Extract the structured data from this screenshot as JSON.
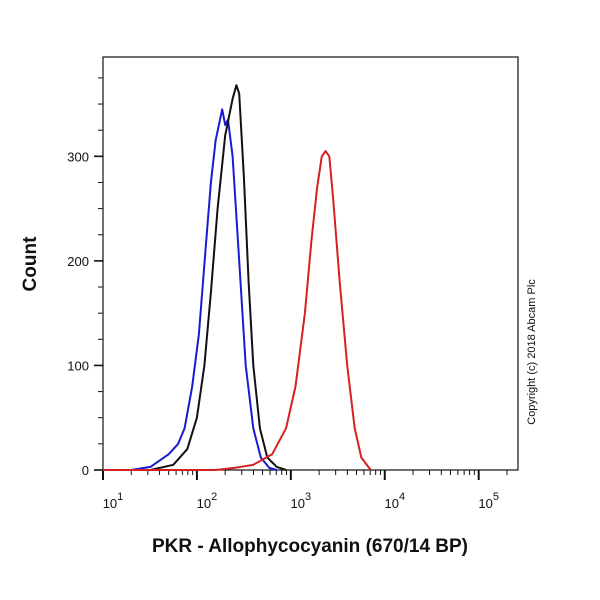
{
  "chart_data": {
    "type": "line",
    "xlabel": "PKR - Allophycocyanin (670/14 BP)",
    "ylabel": "Count",
    "xscale": "log",
    "xlim": [
      10,
      262144
    ],
    "ylim": [
      0,
      395
    ],
    "x_ticks": [
      {
        "base": "10",
        "exp": "1",
        "value": 10
      },
      {
        "base": "10",
        "exp": "2",
        "value": 100
      },
      {
        "base": "10",
        "exp": "3",
        "value": 1000
      },
      {
        "base": "10",
        "exp": "4",
        "value": 10000
      },
      {
        "base": "10",
        "exp": "5",
        "value": 100000
      }
    ],
    "y_ticks": [
      {
        "label": "0",
        "value": 0
      },
      {
        "label": "100",
        "value": 100
      },
      {
        "label": "200",
        "value": 200
      },
      {
        "label": "300",
        "value": 300
      }
    ],
    "grid": false,
    "legend": "none",
    "series": [
      {
        "color": "#1a1ad0",
        "x": [
          20,
          32,
          50,
          63,
          74,
          89,
          105,
          126,
          141,
          158,
          186,
          200,
          214,
          240,
          282,
          331,
          398,
          479,
          589,
          708
        ],
        "y": [
          0,
          3,
          15,
          25,
          40,
          80,
          130,
          220,
          275,
          315,
          345,
          330,
          335,
          300,
          200,
          100,
          40,
          12,
          2,
          0
        ]
      },
      {
        "color": "#111111",
        "x": [
          32,
          56,
          79,
          100,
          120,
          141,
          166,
          200,
          240,
          263,
          282,
          316,
          355,
          398,
          468,
          562,
          708,
          891
        ],
        "y": [
          0,
          5,
          20,
          50,
          100,
          170,
          250,
          320,
          355,
          368,
          360,
          280,
          180,
          100,
          40,
          12,
          3,
          0
        ]
      },
      {
        "color": "#d42020",
        "x": [
          158,
          251,
          398,
          631,
          891,
          1122,
          1413,
          1660,
          1905,
          2138,
          2344,
          2570,
          2818,
          3311,
          3981,
          4786,
          5623,
          7079
        ],
        "y": [
          0,
          2,
          5,
          15,
          40,
          80,
          150,
          220,
          270,
          300,
          305,
          300,
          260,
          180,
          100,
          40,
          12,
          0
        ]
      }
    ]
  },
  "copyright": "Copyright (c) 2018 Abcam Plc"
}
